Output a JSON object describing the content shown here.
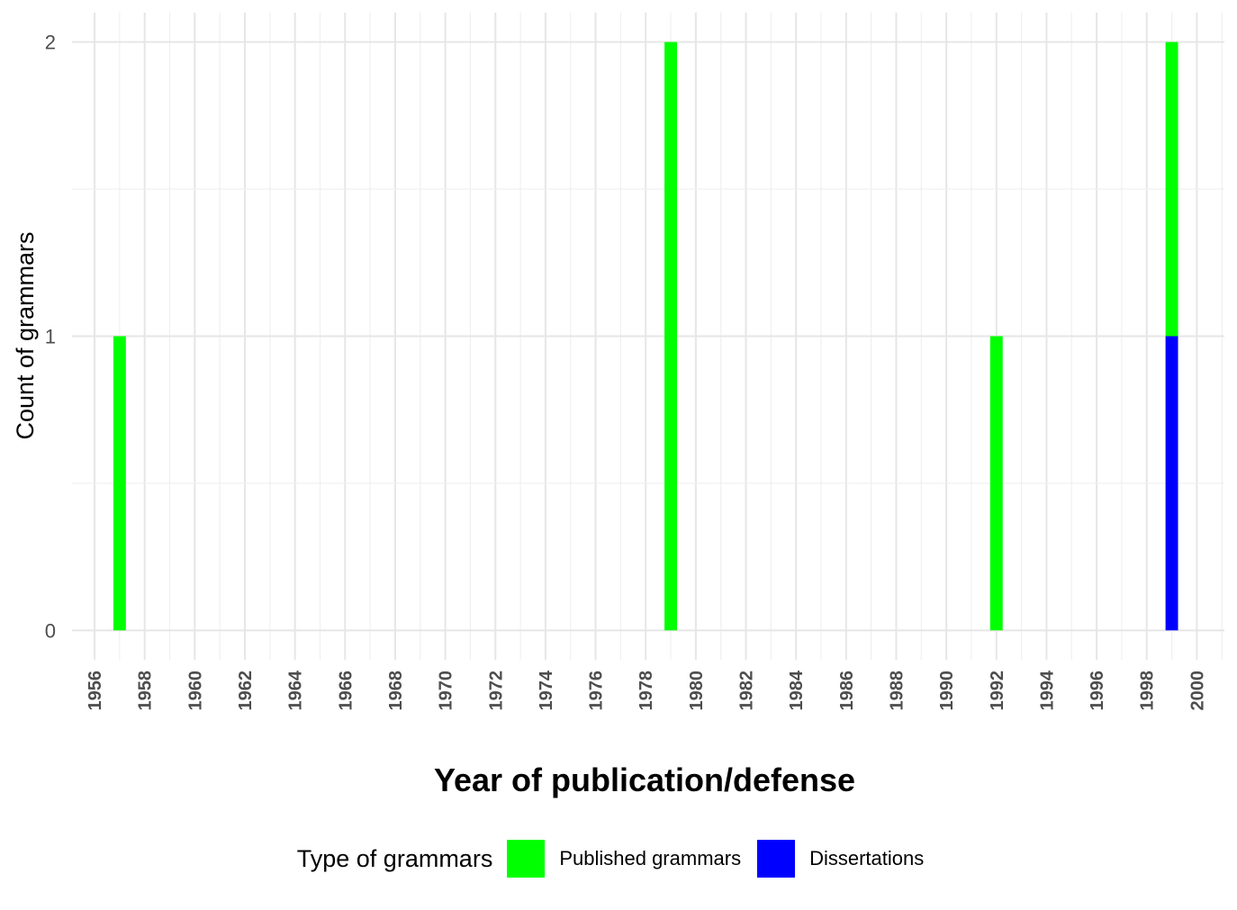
{
  "chart_data": {
    "type": "bar",
    "stacked": true,
    "xlabel": "Year of publication/defense",
    "ylabel": "Count of grammars",
    "x_ticks": [
      1956,
      1958,
      1960,
      1962,
      1964,
      1966,
      1968,
      1970,
      1972,
      1974,
      1976,
      1978,
      1980,
      1982,
      1984,
      1986,
      1988,
      1990,
      1992,
      1994,
      1996,
      1998,
      2000
    ],
    "xlim": [
      1955.1,
      2001.1
    ],
    "ylim": [
      -0.1,
      2.1
    ],
    "y_ticks": [
      0,
      1,
      2
    ],
    "grid": true,
    "legend": {
      "title": "Type of grammars",
      "position": "bottom",
      "entries": [
        "Published grammars",
        "Dissertations"
      ]
    },
    "series": [
      {
        "name": "Published grammars",
        "color": "#00ff00",
        "points": [
          {
            "x": 1957,
            "y": 1
          },
          {
            "x": 1979,
            "y": 2
          },
          {
            "x": 1992,
            "y": 1
          },
          {
            "x": 1999,
            "y": 1
          }
        ]
      },
      {
        "name": "Dissertations",
        "color": "#0000ff",
        "points": [
          {
            "x": 1999,
            "y": 1
          }
        ]
      }
    ]
  }
}
